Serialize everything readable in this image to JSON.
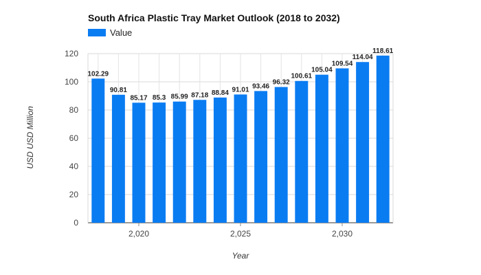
{
  "chart_data": {
    "type": "bar",
    "title": "South Africa Plastic Tray Market Outlook (2018 to 2032)",
    "xlabel": "Year",
    "ylabel": "USD USD Million",
    "x": [
      2018,
      2019,
      2020,
      2021,
      2022,
      2023,
      2024,
      2025,
      2026,
      2027,
      2028,
      2029,
      2030,
      2031,
      2032
    ],
    "series": [
      {
        "name": "Value",
        "color": "#0a7cf2",
        "values": [
          102.29,
          90.81,
          85.17,
          85.3,
          85.99,
          87.18,
          88.84,
          91.01,
          93.46,
          96.32,
          100.61,
          105.04,
          109.54,
          114.04,
          118.61
        ]
      }
    ],
    "data_labels": [
      "102.29",
      "90.81",
      "85.17",
      "85.3",
      "85.99",
      "87.18",
      "88.84",
      "91.01",
      "93.46",
      "96.32",
      "100.61",
      "105.04",
      "109.54",
      "114.04",
      "118.61"
    ],
    "ylim": [
      0,
      120
    ],
    "y_ticks": [
      0,
      20,
      40,
      60,
      80,
      100,
      120
    ],
    "x_ticks": [
      2020,
      2025,
      2030
    ],
    "x_tick_labels": [
      "2,020",
      "2,025",
      "2,030"
    ],
    "grid": true,
    "legend_position": "top-left"
  }
}
